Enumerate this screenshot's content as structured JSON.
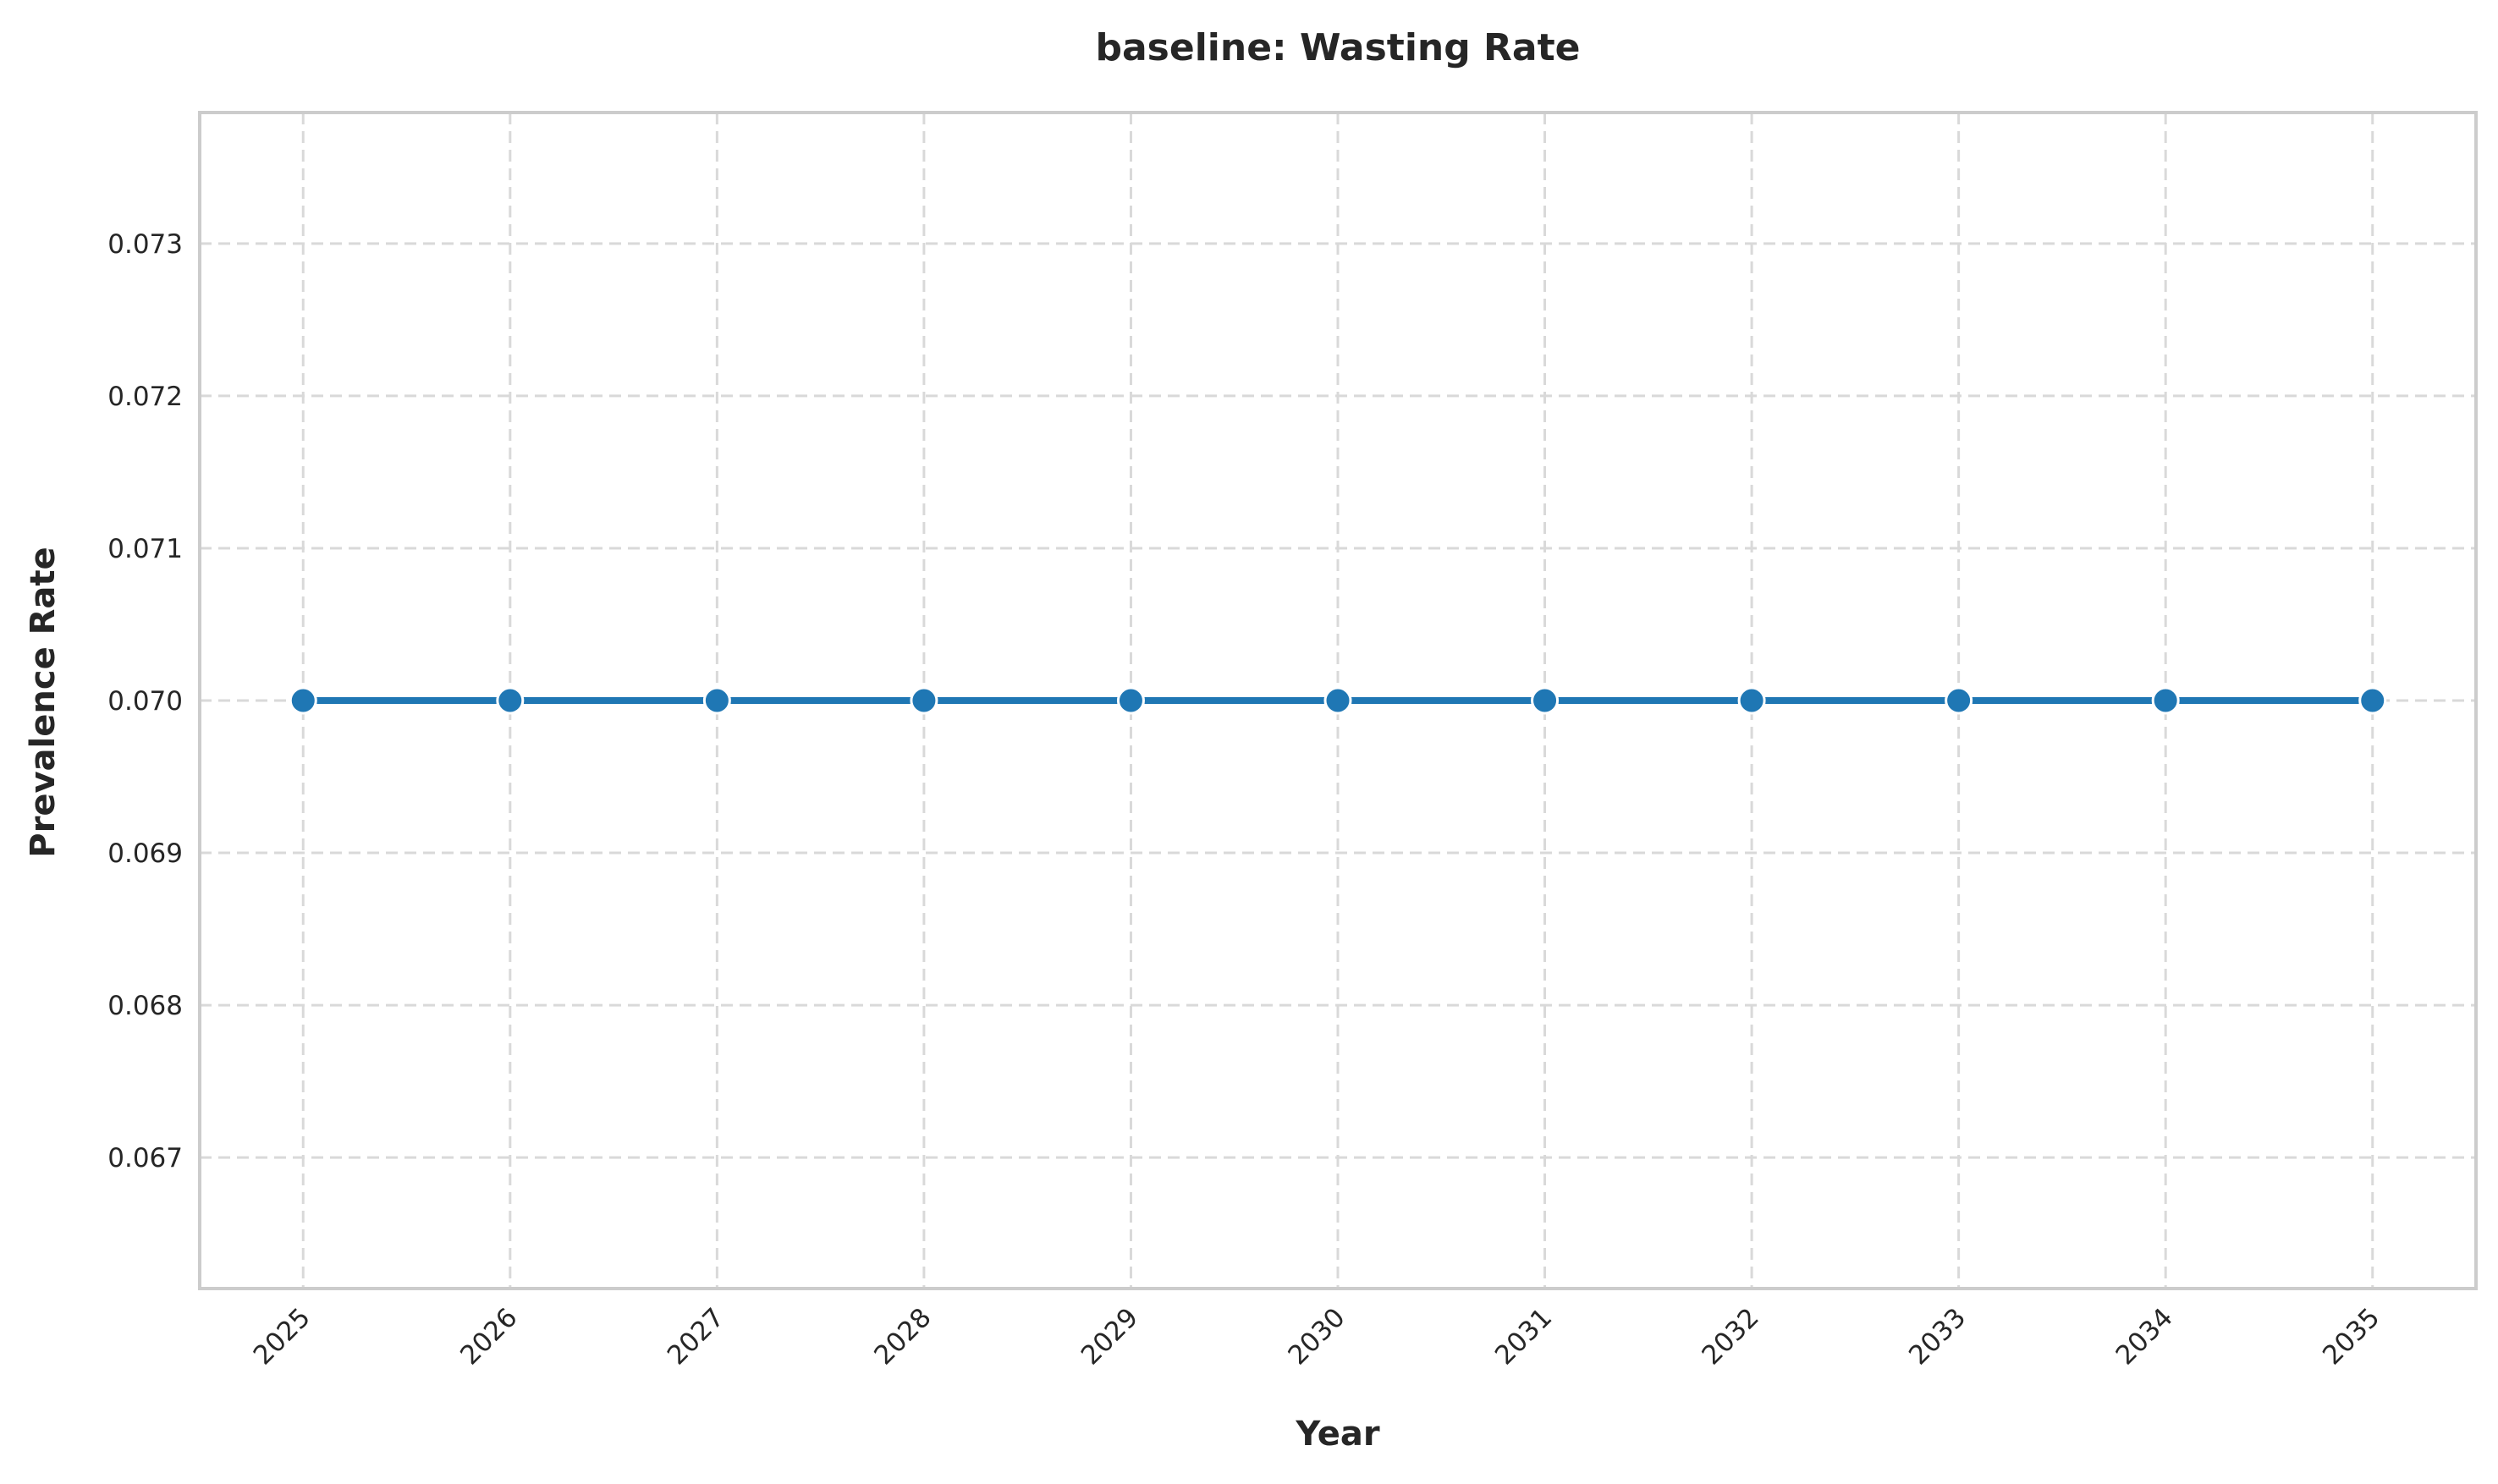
{
  "chart_data": {
    "type": "line",
    "title": "baseline: Wasting Rate",
    "xlabel": "Year",
    "ylabel": "Prevalence Rate",
    "x": [
      2025,
      2026,
      2027,
      2028,
      2029,
      2030,
      2031,
      2032,
      2033,
      2034,
      2035
    ],
    "x_tick_labels": [
      "2025",
      "2026",
      "2027",
      "2028",
      "2029",
      "2030",
      "2031",
      "2032",
      "2033",
      "2034",
      "2035"
    ],
    "series": [
      {
        "values": [
          0.07,
          0.07,
          0.07,
          0.07,
          0.07,
          0.07,
          0.07,
          0.07,
          0.07,
          0.07,
          0.07
        ],
        "color": "#1f77b4",
        "marker": "circle"
      }
    ],
    "y_ticks": [
      0.067,
      0.068,
      0.069,
      0.07,
      0.071,
      0.072,
      0.073
    ],
    "y_tick_labels": [
      "0.067",
      "0.068",
      "0.069",
      "0.070",
      "0.071",
      "0.072",
      "0.073"
    ],
    "ylim": [
      0.06614,
      0.07386
    ],
    "xlim": [
      2024.5,
      2035.5
    ],
    "grid": true,
    "grid_style": "dashed",
    "legend": "none",
    "x_tick_rotation": "45 degrees"
  }
}
